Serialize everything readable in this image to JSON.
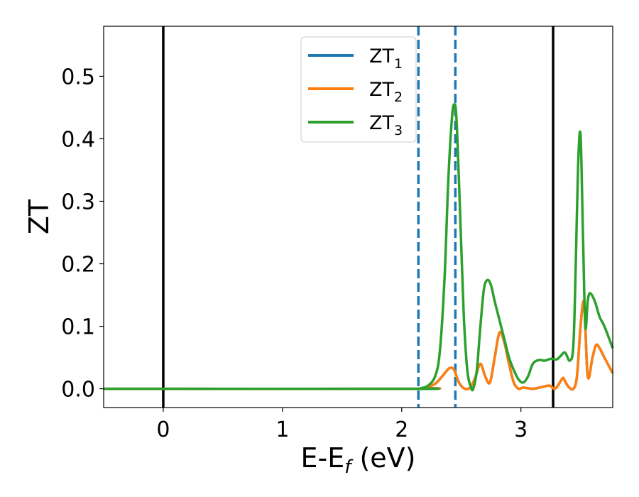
{
  "chart_data": {
    "type": "line",
    "xlabel": "E-E",
    "xlabel_sub": "f",
    "xlabel_unit": " (eV)",
    "ylabel": "ZT",
    "xlim": [
      -0.5,
      3.77
    ],
    "ylim": [
      -0.03,
      0.58
    ],
    "xticks": [
      0,
      1,
      2,
      3
    ],
    "yticks": [
      0.0,
      0.1,
      0.2,
      0.3,
      0.4,
      0.5
    ],
    "xtick_labels": [
      "0",
      "1",
      "2",
      "3"
    ],
    "ytick_labels": [
      "0.0",
      "0.1",
      "0.2",
      "0.3",
      "0.4",
      "0.5"
    ],
    "grid": false,
    "legend_position": "top-center",
    "vlines_solid": [
      0.0,
      3.27
    ],
    "vlines_dashed": [
      2.14,
      2.45
    ],
    "vline_solid_color": "#000000",
    "vline_dashed_color": "#1f77b4",
    "series": [
      {
        "name": "ZT",
        "name_sub": "1",
        "color": "#1f77b4",
        "x": [
          -0.5,
          2.1,
          2.2,
          2.28,
          2.34,
          2.4,
          2.44,
          2.48,
          2.53,
          2.58,
          2.62,
          2.66,
          2.7,
          2.74,
          2.78,
          2.82,
          2.86,
          2.9,
          2.94,
          2.98,
          3.02,
          3.1,
          3.18,
          3.24,
          3.28,
          3.31,
          3.35,
          3.37,
          3.4,
          3.44,
          3.47,
          3.5,
          3.53,
          3.56,
          3.6,
          3.63,
          3.66,
          3.7,
          3.77
        ],
        "y": [
          0,
          0,
          0.002,
          0.008,
          0.02,
          0.033,
          0.03,
          0.01,
          0.0,
          0.003,
          0.02,
          0.04,
          0.02,
          0.01,
          0.05,
          0.09,
          0.075,
          0.04,
          0.01,
          0.0,
          0.002,
          0.0,
          0.003,
          0.005,
          0.0,
          0.005,
          0.017,
          0.012,
          0.003,
          0.0,
          0.02,
          0.1,
          0.137,
          0.02,
          0.05,
          0.07,
          0.065,
          0.05,
          0.025
        ]
      },
      {
        "name": "ZT",
        "name_sub": "2",
        "color": "#ff7f0e",
        "x": [
          -0.5,
          2.1,
          2.2,
          2.28,
          2.34,
          2.4,
          2.44,
          2.48,
          2.53,
          2.58,
          2.62,
          2.66,
          2.7,
          2.74,
          2.78,
          2.82,
          2.86,
          2.9,
          2.94,
          2.98,
          3.02,
          3.1,
          3.18,
          3.24,
          3.28,
          3.31,
          3.35,
          3.37,
          3.4,
          3.44,
          3.47,
          3.5,
          3.53,
          3.56,
          3.6,
          3.63,
          3.66,
          3.7,
          3.77
        ],
        "y": [
          0,
          0,
          0.002,
          0.008,
          0.02,
          0.033,
          0.03,
          0.01,
          0.0,
          0.003,
          0.02,
          0.04,
          0.02,
          0.01,
          0.05,
          0.09,
          0.075,
          0.04,
          0.01,
          0.0,
          0.002,
          0.0,
          0.003,
          0.005,
          0.0,
          0.005,
          0.017,
          0.012,
          0.003,
          0.0,
          0.02,
          0.1,
          0.137,
          0.02,
          0.05,
          0.07,
          0.065,
          0.05,
          0.025
        ]
      },
      {
        "name": "ZT",
        "name_sub": "3",
        "color": "#2ca02c",
        "x": [
          -0.5,
          2.1,
          2.16,
          2.22,
          2.28,
          2.32,
          2.36,
          2.39,
          2.42,
          2.44,
          2.46,
          2.49,
          2.52,
          2.55,
          2.58,
          2.6,
          2.63,
          2.66,
          2.69,
          2.72,
          2.75,
          2.78,
          2.82,
          2.86,
          2.9,
          2.94,
          2.98,
          3.02,
          3.06,
          3.1,
          3.15,
          3.2,
          3.25,
          3.3,
          3.33,
          3.37,
          3.41,
          3.44,
          3.46,
          3.48,
          3.5,
          3.52,
          3.54,
          3.56,
          3.58,
          3.62,
          3.66,
          3.7,
          3.77
        ],
        "y": [
          0,
          0,
          0.001,
          0.005,
          0.02,
          0.06,
          0.18,
          0.33,
          0.43,
          0.455,
          0.43,
          0.28,
          0.12,
          0.03,
          0.003,
          0.0,
          0.03,
          0.1,
          0.16,
          0.174,
          0.165,
          0.14,
          0.11,
          0.08,
          0.05,
          0.03,
          0.015,
          0.01,
          0.02,
          0.04,
          0.046,
          0.045,
          0.048,
          0.047,
          0.052,
          0.058,
          0.045,
          0.07,
          0.2,
          0.36,
          0.406,
          0.25,
          0.1,
          0.14,
          0.153,
          0.14,
          0.115,
          0.1,
          0.065
        ]
      }
    ]
  }
}
